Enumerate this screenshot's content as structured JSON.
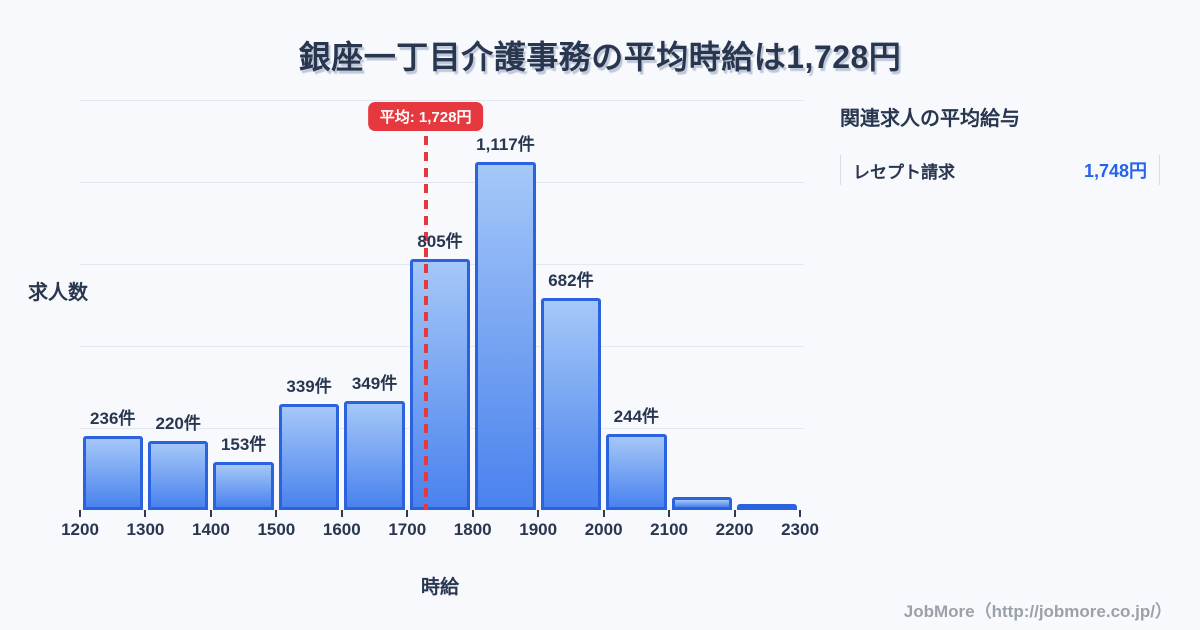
{
  "title": "銀座一丁目介護事務の平均時給は1,728円",
  "chart_data": {
    "type": "bar",
    "title": "銀座一丁目介護事務の平均時給は1,728円",
    "xlabel": "時給",
    "ylabel": "求人数",
    "x_ticks": [
      1200,
      1300,
      1400,
      1500,
      1600,
      1700,
      1800,
      1900,
      2000,
      2100,
      2200,
      2300
    ],
    "bins": [
      {
        "range": "1200-1300",
        "value": 236,
        "label": "236件"
      },
      {
        "range": "1300-1400",
        "value": 220,
        "label": "220件"
      },
      {
        "range": "1400-1500",
        "value": 153,
        "label": "153件"
      },
      {
        "range": "1500-1600",
        "value": 339,
        "label": "339件"
      },
      {
        "range": "1600-1700",
        "value": 349,
        "label": "349件"
      },
      {
        "range": "1700-1800",
        "value": 805,
        "label": "805件"
      },
      {
        "range": "1800-1900",
        "value": 1117,
        "label": "1,117件"
      },
      {
        "range": "1900-2000",
        "value": 682,
        "label": "682件"
      },
      {
        "range": "2000-2100",
        "value": 244,
        "label": "244件"
      },
      {
        "range": "2100-2200",
        "value": 42,
        "label": null
      },
      {
        "range": "2200-2300",
        "value": 12,
        "label": null
      }
    ],
    "ylim": [
      0,
      1316
    ],
    "grid": true,
    "gridline_count": 5,
    "legend_position": "none",
    "average": {
      "value": 1728,
      "label": "平均: 1,728円"
    }
  },
  "side_panel": {
    "heading": "関連求人の平均給与",
    "rows": [
      {
        "label": "レセプト請求",
        "value": "1,748円"
      }
    ]
  },
  "footer": {
    "text": "JobMore（http://jobmore.co.jp/）"
  },
  "colors": {
    "background": "#f7f9fc",
    "text_dark": "#28364f",
    "bar_gradient_top": "#a5c8f8",
    "bar_gradient_bottom": "#4a82ee",
    "bar_border": "#2a63dd",
    "average_red": "#e5383f",
    "value_blue": "#2563eb",
    "footer_gray": "#9ba1a9",
    "gridline": "#e3e8f0"
  }
}
